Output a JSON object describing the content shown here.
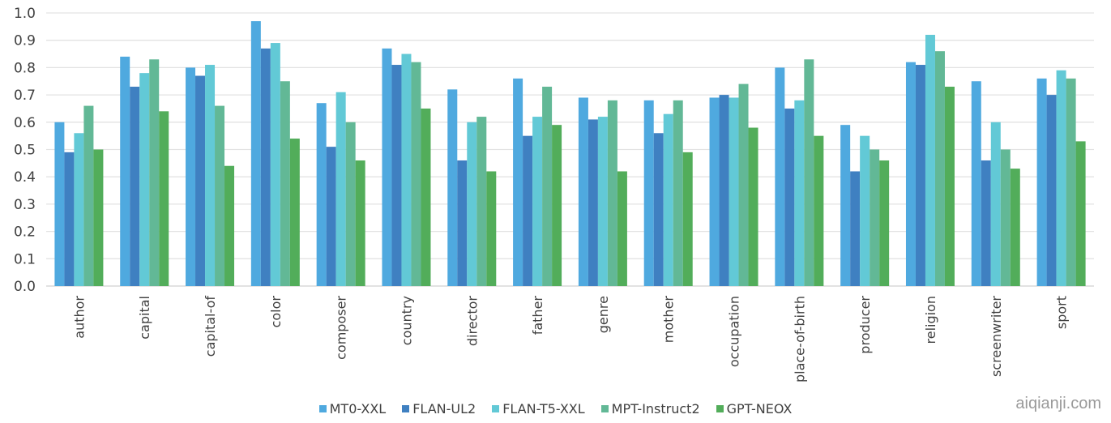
{
  "chart_data": {
    "type": "bar",
    "title": "",
    "xlabel": "",
    "ylabel": "",
    "ylim": [
      0,
      1.0
    ],
    "yticks": [
      "0.0",
      "0.1",
      "0.2",
      "0.3",
      "0.4",
      "0.5",
      "0.6",
      "0.7",
      "0.8",
      "0.9",
      "1.0"
    ],
    "grid": true,
    "legend_position": "bottom",
    "categories": [
      "author",
      "capital",
      "capital-of",
      "color",
      "composer",
      "country",
      "director",
      "father",
      "genre",
      "mother",
      "occupation",
      "place-of-birth",
      "producer",
      "religion",
      "screenwriter",
      "sport"
    ],
    "series": [
      {
        "name": "MT0-XXL",
        "color": "#4FA9DF",
        "values": [
          0.6,
          0.84,
          0.8,
          0.97,
          0.67,
          0.87,
          0.72,
          0.76,
          0.69,
          0.68,
          0.69,
          0.8,
          0.59,
          0.82,
          0.75,
          0.76
        ]
      },
      {
        "name": "FLAN-UL2",
        "color": "#3F80C1",
        "values": [
          0.49,
          0.73,
          0.77,
          0.87,
          0.51,
          0.81,
          0.46,
          0.55,
          0.61,
          0.56,
          0.7,
          0.65,
          0.42,
          0.81,
          0.46,
          0.7
        ]
      },
      {
        "name": "FLAN-T5-XXL",
        "color": "#62C9D6",
        "values": [
          0.56,
          0.78,
          0.81,
          0.89,
          0.71,
          0.85,
          0.6,
          0.62,
          0.62,
          0.63,
          0.69,
          0.68,
          0.55,
          0.92,
          0.6,
          0.79
        ]
      },
      {
        "name": "MPT-Instruct2",
        "color": "#62B896",
        "values": [
          0.66,
          0.83,
          0.66,
          0.75,
          0.6,
          0.82,
          0.62,
          0.73,
          0.68,
          0.68,
          0.74,
          0.83,
          0.5,
          0.86,
          0.5,
          0.76
        ]
      },
      {
        "name": "GPT-NEOX",
        "color": "#52AD5A",
        "values": [
          0.5,
          0.64,
          0.44,
          0.54,
          0.46,
          0.65,
          0.42,
          0.59,
          0.42,
          0.49,
          0.58,
          0.55,
          0.46,
          0.73,
          0.43,
          0.53
        ]
      }
    ]
  },
  "watermark": "aiqianji.com"
}
